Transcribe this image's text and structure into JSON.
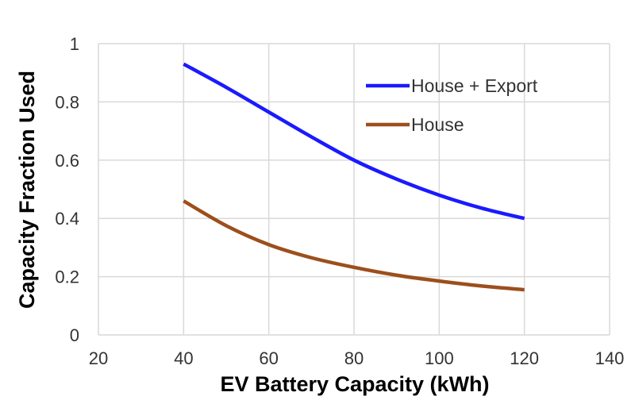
{
  "chart_data": {
    "type": "line",
    "xlabel": "EV Battery Capacity (kWh)",
    "ylabel": "Capacity Fraction Used",
    "xlim": [
      20,
      140
    ],
    "ylim": [
      0,
      1
    ],
    "xticks": [
      20,
      40,
      60,
      80,
      100,
      120,
      140
    ],
    "yticks": [
      0,
      0.2,
      0.4,
      0.6,
      0.8,
      1
    ],
    "xtick_labels": [
      "20",
      "40",
      "60",
      "80",
      "100",
      "120",
      "140"
    ],
    "ytick_labels": [
      "0",
      "0.2",
      "0.4",
      "0.6",
      "0.8",
      "1"
    ],
    "grid": true,
    "legend_position": "top-right",
    "series": [
      {
        "name": "House + Export",
        "color": "#1a1aff",
        "x": [
          40,
          50,
          60,
          70,
          80,
          90,
          100,
          110,
          120
        ],
        "y": [
          0.93,
          0.85,
          0.765,
          0.68,
          0.6,
          0.535,
          0.48,
          0.435,
          0.4
        ]
      },
      {
        "name": "House",
        "color": "#9c4f1c",
        "x": [
          40,
          50,
          60,
          70,
          80,
          90,
          100,
          110,
          120
        ],
        "y": [
          0.46,
          0.375,
          0.31,
          0.265,
          0.232,
          0.205,
          0.185,
          0.168,
          0.155
        ]
      }
    ]
  }
}
